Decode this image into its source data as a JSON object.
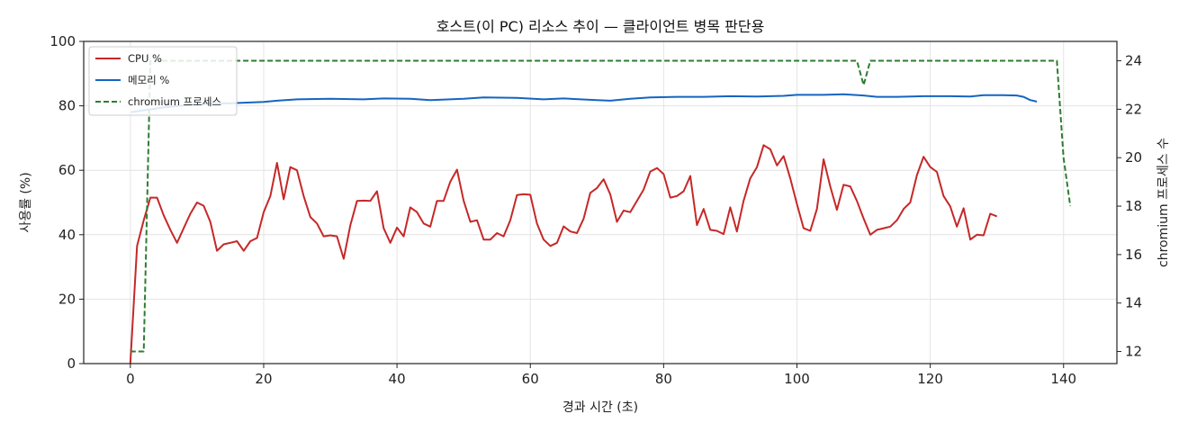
{
  "chart_data": {
    "type": "line",
    "title": "호스트(이 PC) 리소스 추이 — 클라이언트 병목 판단용",
    "xlabel": "경과 시간 (초)",
    "ylabel": "사용률 (%)",
    "y2label": "chromium 프로세스 수",
    "xlim": [
      -7,
      148
    ],
    "ylim": [
      0,
      100
    ],
    "y2lim": [
      11.5,
      24.8
    ],
    "xticks": [
      0,
      20,
      40,
      60,
      80,
      100,
      120,
      140
    ],
    "yticks": [
      0,
      20,
      40,
      60,
      80,
      100
    ],
    "y2ticks": [
      12,
      14,
      16,
      18,
      20,
      22,
      24
    ],
    "grid": true,
    "legend": "top-left",
    "series": [
      {
        "name": "CPU %",
        "axis": "left",
        "color": "#c62828",
        "style": "solid",
        "points": [
          [
            0,
            0
          ],
          [
            1,
            36.5
          ],
          [
            2,
            44.5
          ],
          [
            3,
            51.5
          ],
          [
            4,
            51.5
          ],
          [
            5,
            46
          ],
          [
            6,
            41.5
          ],
          [
            7,
            37.5
          ],
          [
            8,
            42
          ],
          [
            9,
            46.5
          ],
          [
            10,
            50
          ],
          [
            11,
            49
          ],
          [
            12,
            44
          ],
          [
            13,
            35
          ],
          [
            14,
            37
          ],
          [
            15,
            37.5
          ],
          [
            16,
            38
          ],
          [
            17,
            35
          ],
          [
            18,
            38
          ],
          [
            19,
            39
          ],
          [
            20,
            47
          ],
          [
            21,
            52
          ],
          [
            22,
            62.3
          ],
          [
            23,
            51
          ],
          [
            24,
            61
          ],
          [
            25,
            60
          ],
          [
            26,
            52
          ],
          [
            27,
            45.5
          ],
          [
            28,
            43.5
          ],
          [
            29,
            39.5
          ],
          [
            30,
            39.8
          ],
          [
            31,
            39.5
          ],
          [
            32,
            32.5
          ],
          [
            33,
            43
          ],
          [
            34,
            50.5
          ],
          [
            35,
            50.6
          ],
          [
            36,
            50.5
          ],
          [
            37,
            53.5
          ],
          [
            38,
            42
          ],
          [
            39,
            37.5
          ],
          [
            40,
            42.2
          ],
          [
            41,
            39.5
          ],
          [
            42,
            48.5
          ],
          [
            43,
            47
          ],
          [
            44,
            43.5
          ],
          [
            45,
            42.5
          ],
          [
            46,
            50.5
          ],
          [
            47,
            50.5
          ],
          [
            48,
            56.5
          ],
          [
            49,
            60.2
          ],
          [
            50,
            50.5
          ],
          [
            51,
            44
          ],
          [
            52,
            44.5
          ],
          [
            53,
            38.5
          ],
          [
            54,
            38.5
          ],
          [
            55,
            40.5
          ],
          [
            56,
            39.5
          ],
          [
            57,
            44.5
          ],
          [
            58,
            52.3
          ],
          [
            59,
            52.6
          ],
          [
            60,
            52.4
          ],
          [
            61,
            43.5
          ],
          [
            62,
            38.5
          ],
          [
            63,
            36.5
          ],
          [
            64,
            37.5
          ],
          [
            65,
            42.6
          ],
          [
            66,
            41
          ],
          [
            67,
            40.5
          ],
          [
            68,
            45
          ],
          [
            69,
            53
          ],
          [
            70,
            54.5
          ],
          [
            71,
            57.2
          ],
          [
            72,
            52.5
          ],
          [
            73,
            44
          ],
          [
            74,
            47.5
          ],
          [
            75,
            47
          ],
          [
            76,
            50.5
          ],
          [
            77,
            54
          ],
          [
            78,
            59.6
          ],
          [
            79,
            60.7
          ],
          [
            80,
            58.8
          ],
          [
            81,
            51.5
          ],
          [
            82,
            52
          ],
          [
            83,
            53.5
          ],
          [
            84,
            58.2
          ],
          [
            85,
            43
          ],
          [
            86,
            48
          ],
          [
            87,
            41.5
          ],
          [
            88,
            41.2
          ],
          [
            89,
            40.2
          ],
          [
            90,
            48.5
          ],
          [
            91,
            41
          ],
          [
            92,
            50.5
          ],
          [
            93,
            57.5
          ],
          [
            94,
            61
          ],
          [
            95,
            67.8
          ],
          [
            96,
            66.5
          ],
          [
            97,
            61.5
          ],
          [
            98,
            64.4
          ],
          [
            99,
            57.5
          ],
          [
            100,
            49.5
          ],
          [
            101,
            42
          ],
          [
            102,
            41.2
          ],
          [
            103,
            48
          ],
          [
            104,
            63.4
          ],
          [
            105,
            55
          ],
          [
            106,
            47.7
          ],
          [
            107,
            55.5
          ],
          [
            108,
            55
          ],
          [
            109,
            50.5
          ],
          [
            110,
            45
          ],
          [
            111,
            40
          ],
          [
            112,
            41.5
          ],
          [
            113,
            42
          ],
          [
            114,
            42.5
          ],
          [
            115,
            44.5
          ],
          [
            116,
            48
          ],
          [
            117,
            50
          ],
          [
            118,
            58.5
          ],
          [
            119,
            64.2
          ],
          [
            120,
            61
          ],
          [
            121,
            59.5
          ],
          [
            122,
            52
          ],
          [
            123,
            48.8
          ],
          [
            124,
            42.5
          ],
          [
            125,
            48.2
          ],
          [
            126,
            38.5
          ],
          [
            127,
            40
          ],
          [
            128,
            39.8
          ],
          [
            129,
            46.5
          ],
          [
            130,
            45.7
          ]
        ]
      },
      {
        "name": "메모리 %",
        "axis": "left",
        "color": "#1565c0",
        "style": "solid",
        "points": [
          [
            0,
            78
          ],
          [
            5,
            79.5
          ],
          [
            10,
            80.5
          ],
          [
            15,
            80.8
          ],
          [
            20,
            81.2
          ],
          [
            22,
            81.6
          ],
          [
            25,
            82.0
          ],
          [
            30,
            82.2
          ],
          [
            35,
            82.0
          ],
          [
            38,
            82.3
          ],
          [
            42,
            82.2
          ],
          [
            45,
            81.8
          ],
          [
            50,
            82.2
          ],
          [
            53,
            82.6
          ],
          [
            58,
            82.5
          ],
          [
            62,
            82.0
          ],
          [
            65,
            82.3
          ],
          [
            70,
            81.8
          ],
          [
            72,
            81.6
          ],
          [
            75,
            82.2
          ],
          [
            78,
            82.6
          ],
          [
            82,
            82.8
          ],
          [
            86,
            82.8
          ],
          [
            90,
            83.0
          ],
          [
            94,
            82.9
          ],
          [
            98,
            83.1
          ],
          [
            100,
            83.4
          ],
          [
            104,
            83.4
          ],
          [
            107,
            83.6
          ],
          [
            110,
            83.2
          ],
          [
            112,
            82.8
          ],
          [
            115,
            82.8
          ],
          [
            119,
            83.0
          ],
          [
            123,
            83.0
          ],
          [
            126,
            82.9
          ],
          [
            128,
            83.3
          ],
          [
            131,
            83.3
          ],
          [
            133,
            83.2
          ],
          [
            134,
            82.8
          ],
          [
            135,
            81.8
          ],
          [
            136,
            81.3
          ]
        ]
      },
      {
        "name": "chromium 프로세스",
        "axis": "right",
        "color": "#2e7d32",
        "style": "dashed",
        "points": [
          [
            0,
            12
          ],
          [
            2,
            12
          ],
          [
            3,
            24
          ],
          [
            109,
            24
          ],
          [
            110,
            23
          ],
          [
            111,
            24
          ],
          [
            139,
            24
          ],
          [
            140,
            20
          ],
          [
            141,
            18
          ]
        ]
      }
    ]
  }
}
